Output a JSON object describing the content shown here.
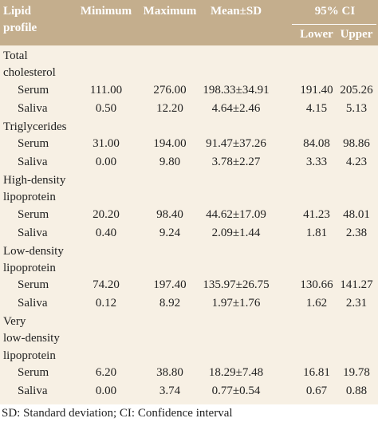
{
  "table": {
    "header": {
      "first": [
        "Lipid",
        "profile"
      ],
      "columns": [
        "Minimum",
        "Maximum",
        "Mean±SD"
      ],
      "ci": "95% CI",
      "ci_columns": [
        "Lower",
        "Upper"
      ]
    },
    "groups": [
      {
        "label": [
          "Total",
          "cholesterol"
        ],
        "rows": [
          {
            "name": "Serum",
            "cells": [
              "111.00",
              "276.00",
              "198.33±34.91",
              "191.40",
              "205.26"
            ]
          },
          {
            "name": "Saliva",
            "cells": [
              "0.50",
              "12.20",
              "4.64±2.46",
              "4.15",
              "5.13"
            ]
          }
        ]
      },
      {
        "label": [
          "Triglycerides"
        ],
        "rows": [
          {
            "name": "Serum",
            "cells": [
              "31.00",
              "194.00",
              "91.47±37.26",
              "84.08",
              "98.86"
            ]
          },
          {
            "name": "Saliva",
            "cells": [
              "0.00",
              "9.80",
              "3.78±2.27",
              "3.33",
              "4.23"
            ]
          }
        ]
      },
      {
        "label": [
          "High-density",
          "lipoprotein"
        ],
        "rows": [
          {
            "name": "Serum",
            "cells": [
              "20.20",
              "98.40",
              "44.62±17.09",
              "41.23",
              "48.01"
            ]
          },
          {
            "name": "Saliva",
            "cells": [
              "0.40",
              "9.24",
              "2.09±1.44",
              "1.81",
              "2.38"
            ]
          }
        ]
      },
      {
        "label": [
          "Low-density",
          "lipoprotein"
        ],
        "rows": [
          {
            "name": "Serum",
            "cells": [
              "74.20",
              "197.40",
              "135.97±26.75",
              "130.66",
              "141.27"
            ]
          },
          {
            "name": "Saliva",
            "cells": [
              "0.12",
              "8.92",
              "1.97±1.76",
              "1.62",
              "2.31"
            ]
          }
        ]
      },
      {
        "label": [
          "Very",
          "low-density",
          "lipoprotein"
        ],
        "rows": [
          {
            "name": "Serum",
            "cells": [
              "6.20",
              "38.80",
              "18.29±7.48",
              "16.81",
              "19.78"
            ]
          },
          {
            "name": "Saliva",
            "cells": [
              "0.00",
              "3.74",
              "0.77±0.54",
              "0.67",
              "0.88"
            ]
          }
        ]
      }
    ],
    "footnote": "SD: Standard deviation; CI: Confidence interval"
  }
}
